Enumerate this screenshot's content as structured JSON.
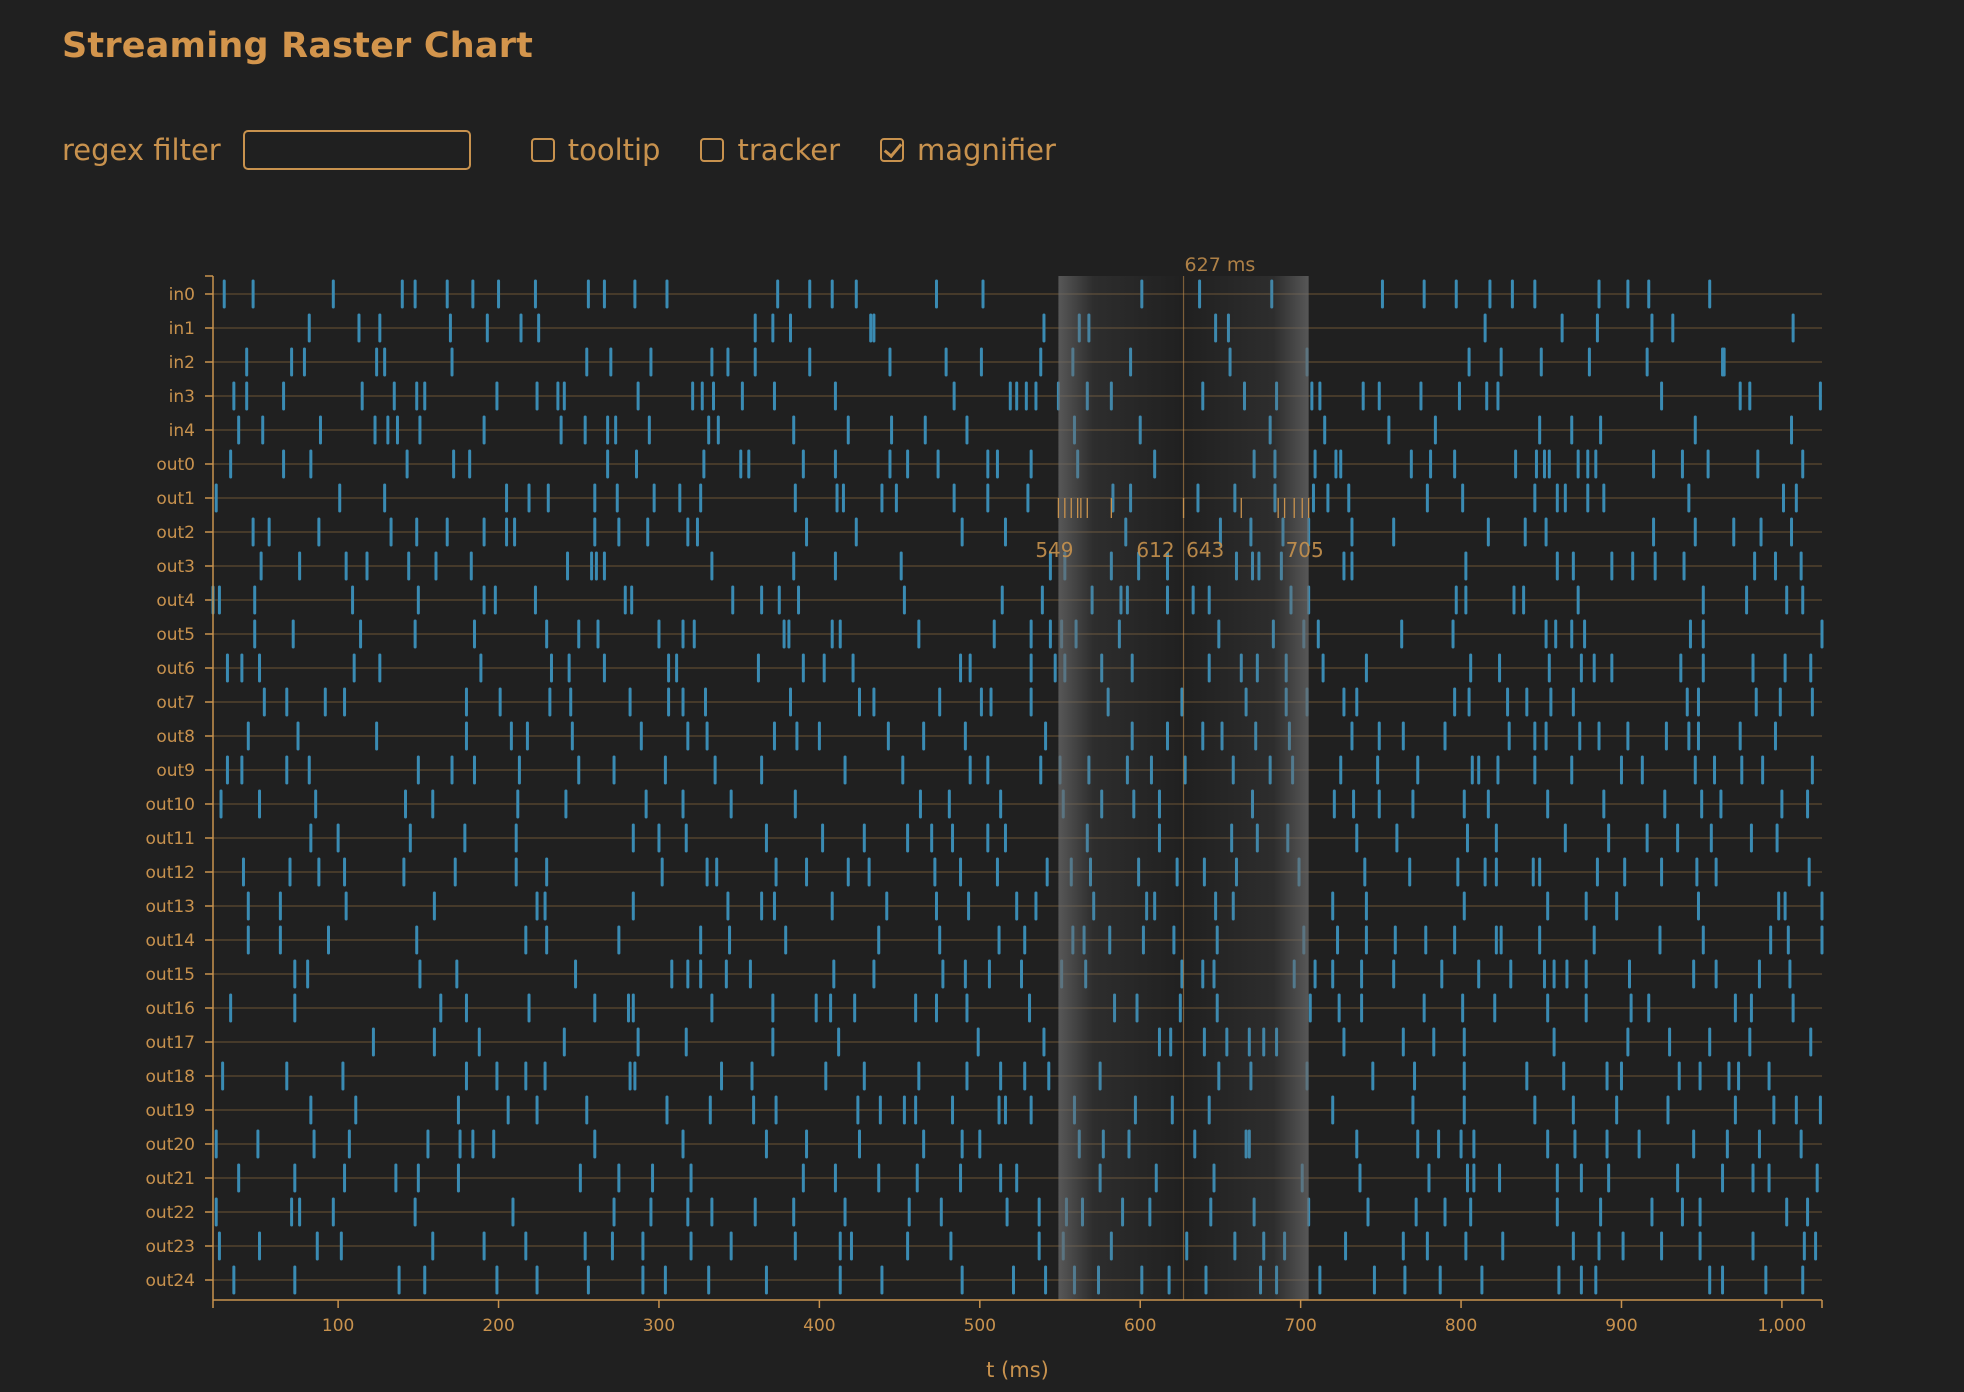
{
  "title": "Streaming Raster Chart",
  "controls": {
    "filter_label": "regex filter",
    "filter_value": "",
    "tooltip_label": "tooltip",
    "tooltip_checked": false,
    "tracker_label": "tracker",
    "tracker_checked": false,
    "magnifier_label": "magnifier",
    "magnifier_checked": true
  },
  "colors": {
    "background": "#202020",
    "axis": "#c8924e",
    "spike": "#3a8bb3",
    "magnifier_band": "#6a6a6a"
  },
  "chart_data": {
    "type": "raster",
    "title": "Streaming Raster Chart",
    "xlabel": "t (ms)",
    "ylabel": "",
    "xlim": [
      22,
      1025
    ],
    "x_ticks": [
      100,
      200,
      300,
      400,
      500,
      600,
      700,
      800,
      900,
      1000
    ],
    "x_tick_labels": [
      "100",
      "200",
      "300",
      "400",
      "500",
      "600",
      "700",
      "800",
      "900",
      "1,000"
    ],
    "grid": "horizontal lines per neuron",
    "magnifier": {
      "center_ms": 627,
      "center_label": "627 ms",
      "range_ms": [
        549,
        705
      ],
      "tick_labels": [
        {
          "value": 549,
          "label": "549"
        },
        {
          "value": 612,
          "label": "612"
        },
        {
          "value": 643,
          "label": "643"
        },
        {
          "value": 705,
          "label": "705"
        }
      ]
    },
    "rows": [
      {
        "name": "in0",
        "spikes": [
          29,
          47,
          97,
          140,
          148,
          168,
          184,
          200,
          223,
          256,
          266,
          285,
          305,
          374,
          394,
          408,
          423,
          473,
          502,
          601,
          637,
          682,
          751,
          777,
          797,
          818,
          832,
          846,
          886,
          904,
          917,
          955,
          1030
        ]
      },
      {
        "name": "in1",
        "spikes": [
          82,
          113,
          126,
          170,
          193,
          214,
          225,
          360,
          371,
          382,
          432,
          434,
          540,
          562,
          568,
          647,
          655,
          815,
          863,
          885,
          919,
          932,
          1007
        ]
      },
      {
        "name": "in2",
        "spikes": [
          43,
          71,
          79,
          124,
          129,
          171,
          255,
          270,
          295,
          333,
          343,
          360,
          394,
          444,
          479,
          501,
          538,
          558,
          594,
          656,
          704,
          805,
          825,
          850,
          880,
          916,
          963,
          964
        ]
      },
      {
        "name": "in3",
        "spikes": [
          35,
          43,
          66,
          115,
          135,
          149,
          154,
          199,
          224,
          237,
          241,
          287,
          321,
          327,
          334,
          352,
          372,
          410,
          484,
          519,
          523,
          529,
          535,
          549,
          567,
          582,
          639,
          665,
          685,
          707,
          712,
          739,
          749,
          775,
          799,
          816,
          823,
          925,
          974,
          980,
          1024
        ]
      },
      {
        "name": "in4",
        "spikes": [
          38,
          53,
          89,
          123,
          131,
          137,
          151,
          191,
          239,
          254,
          268,
          273,
          294,
          331,
          337,
          384,
          418,
          445,
          466,
          492,
          559,
          600,
          681,
          715,
          755,
          784,
          849,
          869,
          887,
          946,
          1006
        ]
      },
      {
        "name": "out0",
        "spikes": [
          33,
          66,
          83,
          143,
          172,
          182,
          268,
          286,
          328,
          351,
          356,
          390,
          410,
          444,
          455,
          474,
          505,
          511,
          532,
          561,
          609,
          671,
          684,
          709,
          722,
          725,
          769,
          781,
          796,
          834,
          847,
          852,
          855,
          873,
          879,
          884,
          920,
          938,
          954,
          985,
          1013
        ]
      },
      {
        "name": "out1",
        "spikes": [
          24,
          101,
          129,
          205,
          219,
          231,
          260,
          274,
          297,
          313,
          326,
          385,
          411,
          415,
          439,
          448,
          484,
          505,
          530,
          583,
          594,
          636,
          659,
          684,
          708,
          717,
          730,
          779,
          801,
          846,
          860,
          865,
          879,
          889,
          942,
          1001,
          1009
        ]
      },
      {
        "name": "out2",
        "spikes": [
          47,
          57,
          88,
          133,
          149,
          168,
          191,
          205,
          210,
          260,
          275,
          293,
          318,
          324,
          392,
          423,
          489,
          516,
          591,
          650,
          669,
          689,
          705,
          732,
          758,
          817,
          840,
          853,
          920,
          946,
          970,
          987,
          1006
        ]
      },
      {
        "name": "out3",
        "spikes": [
          52,
          76,
          105,
          118,
          144,
          161,
          183,
          243,
          258,
          261,
          266,
          333,
          384,
          410,
          451,
          544,
          553,
          582,
          599,
          617,
          660,
          670,
          674,
          688,
          727,
          732,
          803,
          860,
          870,
          894,
          907,
          921,
          939,
          983,
          996,
          1012
        ]
      },
      {
        "name": "out4",
        "spikes": [
          22,
          26,
          48,
          109,
          150,
          191,
          198,
          223,
          279,
          283,
          346,
          364,
          375,
          387,
          453,
          514,
          539,
          570,
          588,
          592,
          617,
          633,
          643,
          694,
          705,
          797,
          803,
          833,
          839,
          873,
          951,
          978,
          1003,
          1013
        ]
      },
      {
        "name": "out5",
        "spikes": [
          48,
          72,
          114,
          148,
          185,
          230,
          250,
          262,
          300,
          315,
          322,
          378,
          381,
          408,
          413,
          462,
          509,
          532,
          544,
          551,
          560,
          587,
          649,
          683,
          702,
          711,
          763,
          795,
          853,
          859,
          869,
          877,
          943,
          951,
          1025
        ]
      },
      {
        "name": "out6",
        "spikes": [
          31,
          40,
          51,
          110,
          126,
          189,
          233,
          244,
          266,
          306,
          311,
          362,
          390,
          403,
          421,
          488,
          494,
          532,
          547,
          553,
          576,
          595,
          643,
          663,
          673,
          691,
          714,
          741,
          806,
          824,
          855,
          875,
          883,
          894,
          937,
          951,
          982,
          1002,
          1018
        ]
      },
      {
        "name": "out7",
        "spikes": [
          54,
          68,
          92,
          104,
          180,
          201,
          232,
          245,
          282,
          306,
          315,
          329,
          382,
          425,
          434,
          475,
          501,
          507,
          532,
          580,
          626,
          666,
          691,
          704,
          727,
          735,
          796,
          805,
          829,
          841,
          856,
          870,
          941,
          948,
          984,
          999,
          1019
        ]
      },
      {
        "name": "out8",
        "spikes": [
          44,
          75,
          124,
          180,
          208,
          218,
          246,
          289,
          318,
          330,
          372,
          386,
          400,
          443,
          465,
          491,
          541,
          595,
          617,
          639,
          651,
          672,
          693,
          732,
          749,
          764,
          790,
          830,
          846,
          853,
          874,
          886,
          904,
          928,
          942,
          948,
          974,
          996
        ]
      },
      {
        "name": "out9",
        "spikes": [
          31,
          40,
          68,
          82,
          150,
          171,
          185,
          213,
          250,
          272,
          304,
          335,
          364,
          416,
          452,
          494,
          505,
          538,
          550,
          568,
          592,
          607,
          628,
          658,
          681,
          695,
          725,
          748,
          773,
          807,
          811,
          823,
          846,
          869,
          900,
          913,
          946,
          958,
          975,
          988,
          1019
        ]
      },
      {
        "name": "out10",
        "spikes": [
          27,
          51,
          86,
          142,
          159,
          212,
          242,
          292,
          315,
          345,
          385,
          463,
          481,
          513,
          552,
          576,
          596,
          612,
          670,
          721,
          733,
          749,
          770,
          802,
          817,
          854,
          889,
          927,
          950,
          962,
          1000,
          1016
        ]
      },
      {
        "name": "out11",
        "spikes": [
          83,
          100,
          145,
          179,
          211,
          284,
          300,
          317,
          367,
          402,
          428,
          455,
          470,
          483,
          505,
          516,
          567,
          612,
          657,
          673,
          692,
          735,
          760,
          804,
          822,
          865,
          892,
          916,
          935,
          956,
          981,
          997
        ]
      },
      {
        "name": "out12",
        "spikes": [
          41,
          70,
          88,
          104,
          141,
          173,
          211,
          230,
          302,
          330,
          336,
          373,
          392,
          418,
          431,
          472,
          488,
          511,
          542,
          557,
          569,
          599,
          623,
          640,
          660,
          699,
          740,
          768,
          798,
          815,
          822,
          845,
          849,
          885,
          902,
          925,
          947,
          959,
          1017,
          1041
        ]
      },
      {
        "name": "out13",
        "spikes": [
          44,
          64,
          105,
          160,
          224,
          229,
          284,
          343,
          364,
          372,
          408,
          442,
          473,
          493,
          523,
          535,
          571,
          604,
          609,
          647,
          658,
          720,
          741,
          802,
          854,
          878,
          897,
          948,
          998,
          1002,
          1025
        ]
      },
      {
        "name": "out14",
        "spikes": [
          44,
          64,
          94,
          149,
          217,
          230,
          275,
          326,
          344,
          379,
          437,
          475,
          512,
          528,
          558,
          565,
          581,
          602,
          621,
          648,
          702,
          723,
          741,
          759,
          778,
          796,
          822,
          825,
          849,
          883,
          924,
          951,
          993,
          1004,
          1025
        ]
      },
      {
        "name": "out15",
        "spikes": [
          73,
          81,
          151,
          174,
          248,
          308,
          318,
          326,
          342,
          357,
          409,
          434,
          477,
          491,
          506,
          526,
          551,
          566,
          626,
          639,
          646,
          696,
          709,
          720,
          738,
          758,
          788,
          811,
          831,
          852,
          858,
          866,
          878,
          905,
          945,
          959,
          986,
          1005
        ]
      },
      {
        "name": "out16",
        "spikes": [
          33,
          73,
          164,
          180,
          219,
          260,
          281,
          284,
          333,
          371,
          398,
          407,
          422,
          460,
          473,
          492,
          531,
          584,
          598,
          625,
          648,
          706,
          724,
          738,
          777,
          801,
          821,
          854,
          878,
          906,
          917,
          971,
          981,
          1007
        ]
      },
      {
        "name": "out17",
        "spikes": [
          122,
          160,
          188,
          241,
          287,
          317,
          371,
          412,
          499,
          540,
          612,
          619,
          640,
          654,
          668,
          677,
          685,
          727,
          764,
          783,
          802,
          858,
          904,
          930,
          955,
          980,
          1018
        ]
      },
      {
        "name": "out18",
        "spikes": [
          28,
          68,
          103,
          180,
          199,
          217,
          229,
          282,
          285,
          339,
          358,
          404,
          428,
          462,
          492,
          513,
          528,
          543,
          575,
          649,
          669,
          704,
          745,
          771,
          802,
          841,
          864,
          891,
          900,
          936,
          949,
          967,
          973,
          992
        ]
      },
      {
        "name": "out19",
        "spikes": [
          83,
          111,
          175,
          206,
          224,
          255,
          305,
          332,
          359,
          373,
          424,
          438,
          453,
          460,
          483,
          512,
          516,
          532,
          559,
          597,
          620,
          643,
          720,
          770,
          802,
          846,
          870,
          897,
          929,
          971,
          995,
          1009,
          1024
        ]
      },
      {
        "name": "out20",
        "spikes": [
          24,
          50,
          85,
          107,
          156,
          176,
          184,
          197,
          260,
          315,
          367,
          392,
          425,
          465,
          489,
          500,
          562,
          577,
          593,
          634,
          666,
          668,
          735,
          773,
          786,
          800,
          808,
          854,
          871,
          891,
          911,
          945,
          966,
          986,
          1012
        ]
      },
      {
        "name": "out21",
        "spikes": [
          38,
          73,
          104,
          136,
          150,
          175,
          251,
          275,
          296,
          320,
          390,
          410,
          437,
          461,
          488,
          513,
          523,
          575,
          610,
          646,
          701,
          737,
          780,
          804,
          808,
          824,
          860,
          875,
          892,
          935,
          963,
          982,
          992,
          1022
        ]
      },
      {
        "name": "out22",
        "spikes": [
          24,
          71,
          76,
          97,
          148,
          209,
          272,
          295,
          318,
          333,
          360,
          384,
          416,
          456,
          476,
          517,
          537,
          554,
          564,
          589,
          606,
          644,
          671,
          705,
          742,
          772,
          790,
          806,
          860,
          887,
          919,
          938,
          949,
          1003,
          1016
        ]
      },
      {
        "name": "out23",
        "spikes": [
          26,
          51,
          87,
          102,
          159,
          191,
          217,
          254,
          271,
          290,
          320,
          345,
          385,
          413,
          420,
          455,
          482,
          537,
          552,
          582,
          629,
          659,
          677,
          690,
          728,
          764,
          779,
          803,
          826,
          870,
          886,
          901,
          925,
          949,
          982,
          1014,
          1021
        ]
      },
      {
        "name": "out24",
        "spikes": [
          35,
          73,
          138,
          154,
          199,
          224,
          256,
          290,
          304,
          331,
          367,
          413,
          439,
          489,
          521,
          541,
          559,
          574,
          601,
          618,
          641,
          675,
          685,
          712,
          746,
          765,
          787,
          813,
          861,
          875,
          884,
          955,
          963,
          990,
          1013
        ]
      }
    ]
  }
}
